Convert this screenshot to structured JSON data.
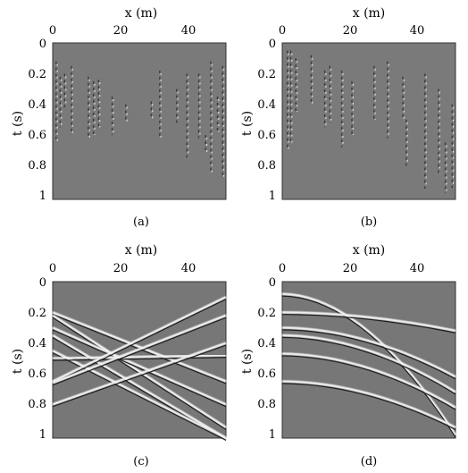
{
  "chart_data": [
    {
      "type": "heatmap",
      "caption": "(a)",
      "xlabel": "x (m)",
      "ylabel": "t (s)",
      "xlim": [
        0,
        51
      ],
      "ylim": [
        1.02,
        0
      ],
      "xticks": [
        "0",
        "20",
        "40"
      ],
      "yticks": [
        "0",
        "0.2",
        "0.4",
        "0.6",
        "0.8",
        "1"
      ],
      "colormap": "gray",
      "content": "sparse vertical traces",
      "traces": [
        {
          "x": 1.0,
          "t0": 0.12,
          "t1": 0.65
        },
        {
          "x": 2.2,
          "t0": 0.22,
          "t1": 0.55
        },
        {
          "x": 3.5,
          "t0": 0.2,
          "t1": 0.42
        },
        {
          "x": 5.5,
          "t0": 0.15,
          "t1": 0.6
        },
        {
          "x": 10.5,
          "t0": 0.22,
          "t1": 0.62
        },
        {
          "x": 12.0,
          "t0": 0.25,
          "t1": 0.6
        },
        {
          "x": 13.5,
          "t0": 0.24,
          "t1": 0.55
        },
        {
          "x": 17.5,
          "t0": 0.35,
          "t1": 0.6
        },
        {
          "x": 21.5,
          "t0": 0.4,
          "t1": 0.52
        },
        {
          "x": 29.0,
          "t0": 0.38,
          "t1": 0.5
        },
        {
          "x": 31.5,
          "t0": 0.18,
          "t1": 0.62
        },
        {
          "x": 36.5,
          "t0": 0.3,
          "t1": 0.52
        },
        {
          "x": 39.5,
          "t0": 0.2,
          "t1": 0.75
        },
        {
          "x": 43.0,
          "t0": 0.2,
          "t1": 0.62
        },
        {
          "x": 45.0,
          "t0": 0.6,
          "t1": 0.72
        },
        {
          "x": 46.5,
          "t0": 0.12,
          "t1": 0.85
        },
        {
          "x": 48.5,
          "t0": 0.35,
          "t1": 0.58
        },
        {
          "x": 50.0,
          "t0": 0.15,
          "t1": 0.88
        }
      ]
    },
    {
      "type": "heatmap",
      "caption": "(b)",
      "xlabel": "x (m)",
      "ylabel": "t (s)",
      "xlim": [
        0,
        51
      ],
      "ylim": [
        1.02,
        0
      ],
      "xticks": [
        "0",
        "20",
        "40"
      ],
      "yticks": [
        "0",
        "0.2",
        "0.4",
        "0.6",
        "0.8",
        "1"
      ],
      "colormap": "gray",
      "content": "sparse vertical traces",
      "traces": [
        {
          "x": 1.5,
          "t0": 0.05,
          "t1": 0.7
        },
        {
          "x": 2.5,
          "t0": 0.05,
          "t1": 0.66
        },
        {
          "x": 4.0,
          "t0": 0.1,
          "t1": 0.45
        },
        {
          "x": 8.5,
          "t0": 0.08,
          "t1": 0.4
        },
        {
          "x": 12.5,
          "t0": 0.18,
          "t1": 0.55
        },
        {
          "x": 14.0,
          "t0": 0.15,
          "t1": 0.52
        },
        {
          "x": 17.5,
          "t0": 0.18,
          "t1": 0.68
        },
        {
          "x": 20.5,
          "t0": 0.25,
          "t1": 0.6
        },
        {
          "x": 27.0,
          "t0": 0.15,
          "t1": 0.5
        },
        {
          "x": 31.0,
          "t0": 0.12,
          "t1": 0.62
        },
        {
          "x": 35.5,
          "t0": 0.22,
          "t1": 0.5
        },
        {
          "x": 36.5,
          "t0": 0.5,
          "t1": 0.8
        },
        {
          "x": 42.0,
          "t0": 0.2,
          "t1": 0.95
        },
        {
          "x": 46.0,
          "t0": 0.3,
          "t1": 0.85
        },
        {
          "x": 48.0,
          "t0": 0.65,
          "t1": 0.98
        },
        {
          "x": 50.0,
          "t0": 0.4,
          "t1": 0.95
        }
      ]
    },
    {
      "type": "heatmap",
      "caption": "(c)",
      "xlabel": "x (m)",
      "ylabel": "t (s)",
      "xlim": [
        0,
        51
      ],
      "ylim": [
        1.02,
        0
      ],
      "xticks": [
        "0",
        "20",
        "40"
      ],
      "yticks": [
        "0",
        "0.2",
        "0.4",
        "0.6",
        "0.8",
        "1"
      ],
      "colormap": "gray",
      "content": "linear events",
      "events": [
        {
          "t_left": 0.2,
          "t_right": 0.65
        },
        {
          "t_left": 0.22,
          "t_right": 0.95
        },
        {
          "t_left": 0.3,
          "t_right": 0.8
        },
        {
          "t_left": 0.35,
          "t_right": 1.02
        },
        {
          "t_left": 0.45,
          "t_right": 1.03
        },
        {
          "t_left": 0.5,
          "t_right": 0.48
        },
        {
          "t_left": 0.65,
          "t_right": 0.1
        },
        {
          "t_left": 0.66,
          "t_right": 0.22
        },
        {
          "t_left": 0.8,
          "t_right": 0.4
        }
      ]
    },
    {
      "type": "heatmap",
      "caption": "(d)",
      "xlabel": "x (m)",
      "ylabel": "t (s)",
      "xlim": [
        0,
        51
      ],
      "ylim": [
        1.02,
        0
      ],
      "xticks": [
        "0",
        "20",
        "40"
      ],
      "yticks": [
        "0",
        "0.2",
        "0.4",
        "0.6",
        "0.8",
        "1"
      ],
      "colormap": "gray",
      "content": "curved events",
      "events": [
        {
          "t_left": 0.08,
          "t_right": 1.0
        },
        {
          "t_left": 0.2,
          "t_right": 0.32
        },
        {
          "t_left": 0.3,
          "t_right": 0.62
        },
        {
          "t_left": 0.35,
          "t_right": 0.72
        },
        {
          "t_left": 0.47,
          "t_right": 0.82
        },
        {
          "t_left": 0.65,
          "t_right": 0.95
        }
      ]
    }
  ]
}
